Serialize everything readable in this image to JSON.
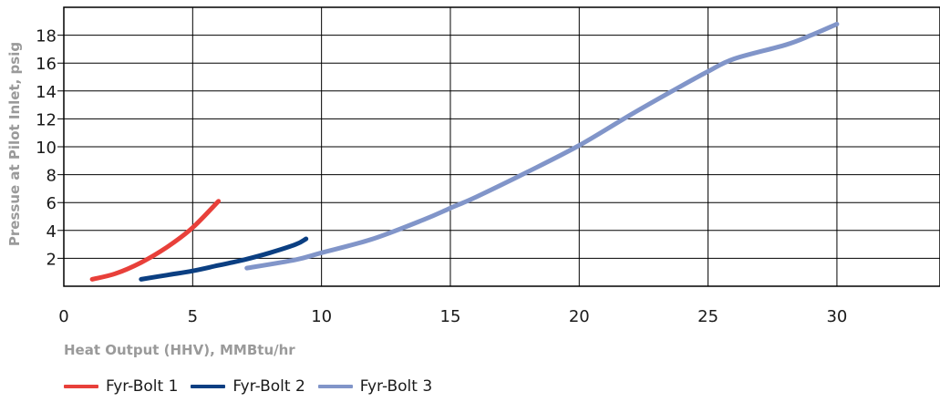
{
  "chart_data": {
    "type": "line",
    "xlabel": "Heat Output (HHV), MMBtu/hr",
    "ylabel": "Pressue at Pilot Inlet, psig",
    "xlim": [
      0,
      34
    ],
    "ylim": [
      0,
      20
    ],
    "xticks": [
      0,
      5,
      10,
      15,
      20,
      25,
      30
    ],
    "yticks": [
      2,
      4,
      6,
      8,
      10,
      12,
      14,
      16,
      18
    ],
    "grid": true,
    "legend_position": "bottom-left",
    "series": [
      {
        "name": "Fyr-Bolt 1",
        "color": "#e8403a",
        "points": [
          [
            1.1,
            0.5
          ],
          [
            2,
            0.9
          ],
          [
            3,
            1.7
          ],
          [
            4,
            2.8
          ],
          [
            5,
            4.2
          ],
          [
            6,
            6.1
          ]
        ]
      },
      {
        "name": "Fyr-Bolt 2",
        "color": "#0b3f82",
        "points": [
          [
            3,
            0.5
          ],
          [
            4,
            0.8
          ],
          [
            5,
            1.1
          ],
          [
            6,
            1.5
          ],
          [
            7,
            1.9
          ],
          [
            8,
            2.4
          ],
          [
            9,
            3.0
          ],
          [
            9.4,
            3.4
          ]
        ]
      },
      {
        "name": "Fyr-Bolt 3",
        "color": "#8195c9",
        "points": [
          [
            7.1,
            1.3
          ],
          [
            9,
            1.9
          ],
          [
            10,
            2.4
          ],
          [
            12,
            3.4
          ],
          [
            14,
            4.8
          ],
          [
            15,
            5.6
          ],
          [
            16,
            6.4
          ],
          [
            18,
            8.2
          ],
          [
            20,
            10.1
          ],
          [
            22,
            12.3
          ],
          [
            24,
            14.4
          ],
          [
            25,
            15.4
          ],
          [
            26,
            16.3
          ],
          [
            28,
            17.3
          ],
          [
            29,
            18.0
          ],
          [
            30,
            18.8
          ]
        ]
      }
    ]
  }
}
